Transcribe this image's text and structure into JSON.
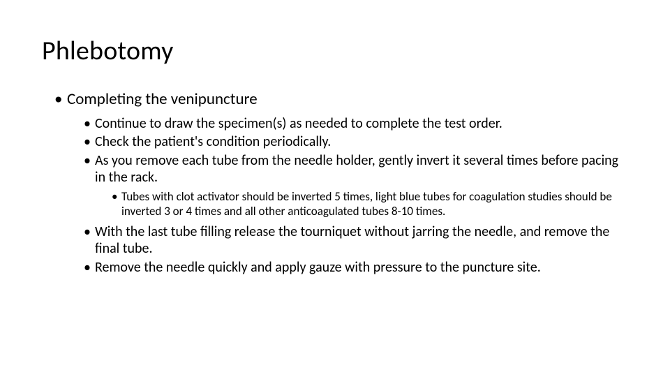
{
  "title": "Phlebotomy",
  "lvl1_heading": "Completing the venipuncture",
  "lvl2": {
    "a": "Continue to draw the specimen(s) as needed to complete the test order.",
    "b": "Check the patient's condition periodically.",
    "c": "As you remove each tube from the needle holder, gently invert it several times before pacing in the rack.",
    "d": "With the last tube filling release the tourniquet without jarring the needle, and remove the final tube.",
    "e": "Remove the needle quickly and apply gauze with pressure to the puncture site."
  },
  "lvl3": {
    "a": "Tubes with clot activator should be inverted 5 times, light blue tubes for coagulation studies should be inverted 3 or 4 times and all other anticoagulated tubes 8-10 times."
  },
  "style": {
    "background_color": "#ffffff",
    "text_color": "#000000",
    "title_fontsize": 38,
    "lvl1_fontsize": 23,
    "lvl2_fontsize": 20,
    "lvl3_fontsize": 17,
    "font_family": "Calibri"
  }
}
